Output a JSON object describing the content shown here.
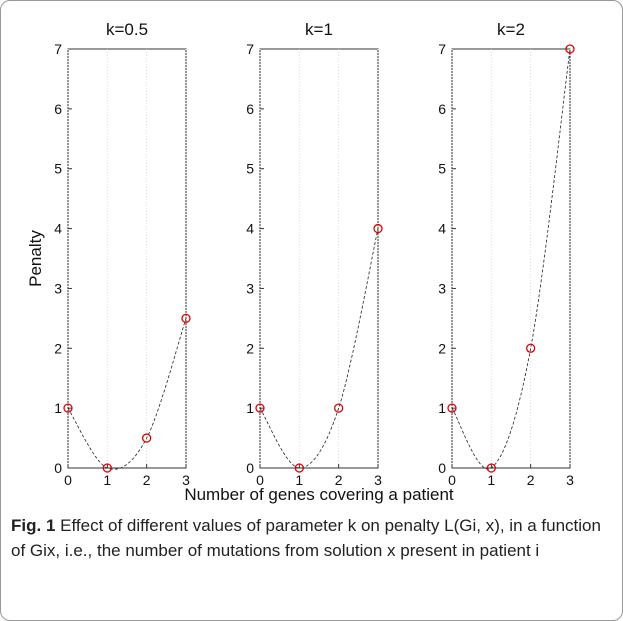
{
  "chart_data": [
    {
      "type": "line",
      "title": "k=0.5",
      "ylabel": "Penalty",
      "x": [
        0,
        1,
        2,
        3
      ],
      "series": [
        {
          "color": "#e00000",
          "line_color": "#222222",
          "values": [
            1,
            0,
            0.5,
            2.5
          ]
        }
      ],
      "xlim": [
        0,
        3
      ],
      "ylim": [
        0,
        7
      ],
      "xticks": [
        0,
        1,
        2,
        3
      ],
      "yticks": [
        0,
        1,
        2,
        3,
        4,
        5,
        6,
        7
      ],
      "xgrid": true
    },
    {
      "type": "line",
      "title": "k=1",
      "xlabel": "Number of genes covering a patient",
      "x": [
        0,
        1,
        2,
        3
      ],
      "series": [
        {
          "color": "#e00000",
          "line_color": "#222222",
          "values": [
            1,
            0,
            1,
            4
          ]
        }
      ],
      "xlim": [
        0,
        3
      ],
      "ylim": [
        0,
        7
      ],
      "xticks": [
        0,
        1,
        2,
        3
      ],
      "yticks": [
        0,
        1,
        2,
        3,
        4,
        5,
        6,
        7
      ],
      "xgrid": true
    },
    {
      "type": "line",
      "title": "k=2",
      "x": [
        0,
        1,
        2,
        3
      ],
      "series": [
        {
          "color": "#e00000",
          "line_color": "#222222",
          "values": [
            1,
            0,
            2,
            7
          ]
        }
      ],
      "xlim": [
        0,
        3
      ],
      "ylim": [
        0,
        7
      ],
      "xticks": [
        0,
        1,
        2,
        3
      ],
      "yticks": [
        0,
        1,
        2,
        3,
        4,
        5,
        6,
        7
      ],
      "xgrid": true
    }
  ],
  "caption": {
    "label": "Fig. 1",
    "text": "Effect of different values of parameter k on penalty L(Gi, x), in a function of Gix, i.e., the number of mutations from solution x present in patient i"
  }
}
